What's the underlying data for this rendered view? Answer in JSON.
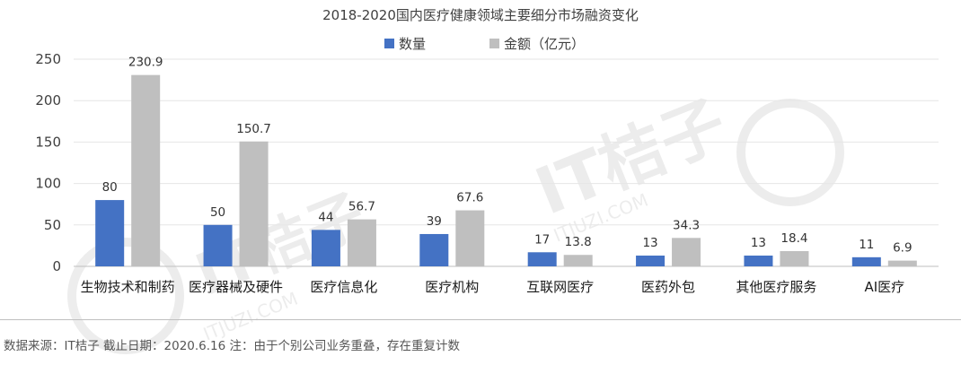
{
  "chart_data": {
    "type": "bar",
    "title": "2018-2020国内医疗健康领域主要细分市场融资变化",
    "categories": [
      "生物技术和制药",
      "医疗器械及硬件",
      "医疗信息化",
      "医疗机构",
      "互联网医疗",
      "医药外包",
      "其他医疗服务",
      "AI医疗"
    ],
    "series": [
      {
        "name": "数量",
        "color": "#4472C4",
        "values": [
          80,
          50,
          44,
          39,
          17,
          13,
          13,
          11
        ]
      },
      {
        "name": "金额（亿元）",
        "color": "#BFBFBF",
        "values": [
          230.9,
          150.7,
          56.7,
          67.6,
          13.8,
          34.3,
          18.4,
          6.9
        ]
      }
    ],
    "data_labels": [
      [
        "80",
        "50",
        "44",
        "39",
        "17",
        "13",
        "13",
        "11"
      ],
      [
        "230.9",
        "150.7",
        "56.7",
        "67.6",
        "13.8",
        "34.3",
        "18.4",
        "6.9"
      ]
    ],
    "ylim": [
      0,
      250
    ],
    "yticks": [
      0,
      50,
      100,
      150,
      200,
      250
    ],
    "grid": true,
    "legend_position": "top-center"
  },
  "footer": {
    "text": "数据来源：IT桔子  截止日期：2020.6.16  注：由于个别公司业务重叠，存在重复计数"
  },
  "watermark": {
    "text_cn": "IT桔子",
    "text_en": "ITJUZI.COM"
  }
}
